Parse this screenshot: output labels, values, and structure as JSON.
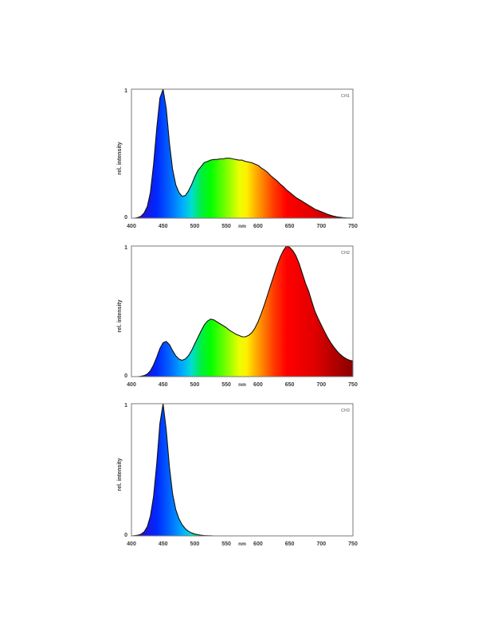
{
  "figure": {
    "ylabel": "rel. intensity",
    "x_unit": "nm",
    "x_ticks": [
      400,
      450,
      500,
      550,
      600,
      650,
      700,
      750
    ],
    "y_tick_top": "1",
    "y_tick_bottom": "0",
    "colors": {
      "background": "#ffffff",
      "axis_box": "#7a7a7a",
      "tick_label": "#3a3a3a",
      "curve_stroke": "#121212",
      "channel_label": "#8c8c8c"
    },
    "spectrum_stops": [
      {
        "nm": 400,
        "color": "#3D00B8"
      },
      {
        "nm": 440,
        "color": "#0028FF"
      },
      {
        "nm": 460,
        "color": "#0064FF"
      },
      {
        "nm": 480,
        "color": "#00AAFF"
      },
      {
        "nm": 495,
        "color": "#00DCD2"
      },
      {
        "nm": 510,
        "color": "#00EE44"
      },
      {
        "nm": 525,
        "color": "#00FF00"
      },
      {
        "nm": 550,
        "color": "#7DFF00"
      },
      {
        "nm": 570,
        "color": "#E8FF00"
      },
      {
        "nm": 582,
        "color": "#FFF000"
      },
      {
        "nm": 595,
        "color": "#FFB400"
      },
      {
        "nm": 610,
        "color": "#FF7800"
      },
      {
        "nm": 625,
        "color": "#FF3A00"
      },
      {
        "nm": 645,
        "color": "#FF0000"
      },
      {
        "nm": 690,
        "color": "#E00000"
      },
      {
        "nm": 720,
        "color": "#B20000"
      },
      {
        "nm": 750,
        "color": "#8C0000"
      }
    ]
  },
  "chart_data": [
    {
      "type": "area",
      "title": "CH1",
      "xlabel": "nm",
      "ylabel": "rel. intensity",
      "xlim": [
        400,
        750
      ],
      "ylim": [
        0,
        1
      ],
      "legend": "none",
      "grid": false,
      "x": [
        400,
        405,
        410,
        415,
        420,
        425,
        430,
        435,
        440,
        445,
        450,
        455,
        460,
        465,
        470,
        475,
        480,
        485,
        490,
        495,
        500,
        505,
        510,
        515,
        520,
        525,
        530,
        535,
        540,
        545,
        550,
        555,
        560,
        565,
        570,
        575,
        580,
        585,
        590,
        595,
        600,
        605,
        610,
        615,
        620,
        625,
        630,
        635,
        640,
        645,
        650,
        655,
        660,
        665,
        670,
        675,
        680,
        685,
        690,
        695,
        700,
        705,
        710,
        715,
        720,
        725,
        730,
        735,
        740,
        745,
        750
      ],
      "y": [
        0,
        0,
        0.005,
        0.015,
        0.04,
        0.09,
        0.2,
        0.42,
        0.7,
        0.93,
        1,
        0.85,
        0.58,
        0.38,
        0.26,
        0.2,
        0.17,
        0.175,
        0.21,
        0.26,
        0.32,
        0.37,
        0.4,
        0.43,
        0.44,
        0.45,
        0.455,
        0.455,
        0.46,
        0.46,
        0.465,
        0.465,
        0.46,
        0.455,
        0.45,
        0.45,
        0.44,
        0.435,
        0.43,
        0.42,
        0.41,
        0.39,
        0.375,
        0.355,
        0.33,
        0.31,
        0.29,
        0.265,
        0.245,
        0.22,
        0.2,
        0.18,
        0.16,
        0.145,
        0.13,
        0.115,
        0.1,
        0.085,
        0.07,
        0.06,
        0.05,
        0.04,
        0.03,
        0.022,
        0.015,
        0.01,
        0.007,
        0.004,
        0.002,
        0.001,
        0
      ]
    },
    {
      "type": "area",
      "title": "CH2",
      "xlabel": "nm",
      "ylabel": "rel. intensity",
      "xlim": [
        400,
        750
      ],
      "ylim": [
        0,
        1
      ],
      "legend": "none",
      "grid": false,
      "x": [
        400,
        405,
        410,
        415,
        420,
        425,
        430,
        435,
        440,
        445,
        450,
        455,
        460,
        465,
        470,
        475,
        480,
        485,
        490,
        495,
        500,
        505,
        510,
        515,
        520,
        525,
        530,
        535,
        540,
        545,
        550,
        555,
        560,
        565,
        570,
        575,
        580,
        585,
        590,
        595,
        600,
        605,
        610,
        615,
        620,
        625,
        630,
        635,
        640,
        645,
        650,
        655,
        660,
        665,
        670,
        675,
        680,
        685,
        690,
        695,
        700,
        705,
        710,
        715,
        720,
        725,
        730,
        735,
        740,
        745,
        750
      ],
      "y": [
        0,
        0,
        0,
        0.003,
        0.008,
        0.02,
        0.045,
        0.09,
        0.15,
        0.215,
        0.26,
        0.27,
        0.245,
        0.2,
        0.16,
        0.135,
        0.125,
        0.135,
        0.16,
        0.2,
        0.25,
        0.3,
        0.35,
        0.395,
        0.425,
        0.44,
        0.435,
        0.42,
        0.405,
        0.39,
        0.375,
        0.355,
        0.34,
        0.325,
        0.315,
        0.305,
        0.305,
        0.315,
        0.335,
        0.37,
        0.42,
        0.48,
        0.55,
        0.625,
        0.7,
        0.775,
        0.85,
        0.915,
        0.965,
        1,
        0.99,
        0.965,
        0.925,
        0.865,
        0.79,
        0.715,
        0.655,
        0.575,
        0.5,
        0.445,
        0.395,
        0.345,
        0.3,
        0.26,
        0.225,
        0.195,
        0.17,
        0.15,
        0.135,
        0.125,
        0.12
      ]
    },
    {
      "type": "area",
      "title": "CH3",
      "xlabel": "nm",
      "ylabel": "rel. intensity",
      "xlim": [
        400,
        750
      ],
      "ylim": [
        0,
        1
      ],
      "legend": "none",
      "grid": false,
      "x": [
        400,
        405,
        410,
        415,
        420,
        425,
        430,
        435,
        440,
        445,
        450,
        455,
        460,
        465,
        470,
        475,
        480,
        485,
        490,
        495,
        500,
        505,
        510,
        515,
        520,
        525,
        530,
        535,
        540,
        545,
        550,
        555,
        560,
        565,
        570,
        575,
        580,
        585,
        590,
        595,
        600,
        605,
        610,
        615,
        620,
        625,
        630,
        635,
        640,
        645,
        650,
        655,
        660,
        665,
        670,
        675,
        680,
        685,
        690,
        695,
        700,
        705,
        710,
        715,
        720,
        725,
        730,
        735,
        740,
        745,
        750
      ],
      "y": [
        0,
        0.002,
        0.005,
        0.012,
        0.03,
        0.07,
        0.15,
        0.3,
        0.55,
        0.85,
        1,
        0.8,
        0.52,
        0.32,
        0.2,
        0.13,
        0.085,
        0.055,
        0.035,
        0.022,
        0.014,
        0.009,
        0.005,
        0.003,
        0.002,
        0.001,
        0,
        0,
        0,
        0,
        0,
        0,
        0,
        0,
        0,
        0,
        0,
        0,
        0,
        0,
        0,
        0,
        0,
        0,
        0,
        0,
        0,
        0,
        0,
        0,
        0,
        0,
        0,
        0,
        0,
        0,
        0,
        0,
        0,
        0,
        0,
        0,
        0,
        0,
        0,
        0,
        0,
        0,
        0,
        0,
        0
      ]
    }
  ]
}
